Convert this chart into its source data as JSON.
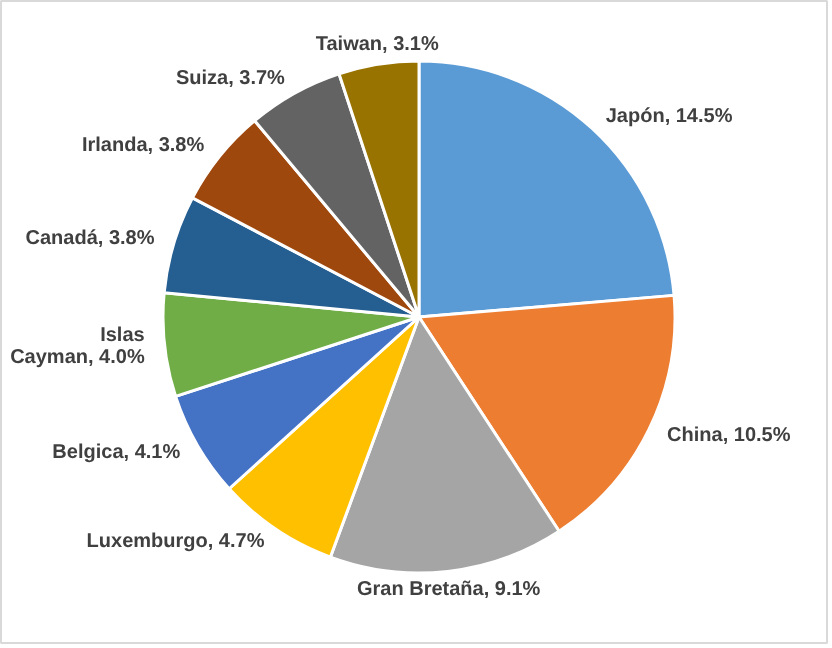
{
  "chart_data": {
    "type": "pie",
    "categories": [
      "Japón",
      "China",
      "Gran Bretaña",
      "Luxemburgo",
      "Belgica",
      "Islas Cayman",
      "Canadá",
      "Irlanda",
      "Suiza",
      "Taiwan"
    ],
    "values": [
      14.5,
      10.5,
      9.1,
      4.7,
      4.1,
      4.0,
      3.8,
      3.8,
      3.7,
      3.1
    ],
    "value_labels": [
      "14.5%",
      "10.5%",
      "9.1%",
      "4.7%",
      "4.1%",
      "4.0%",
      "3.8%",
      "3.8%",
      "3.7%",
      "3.1%"
    ],
    "colors": [
      "#5b9bd5",
      "#ed7d31",
      "#a5a5a5",
      "#ffc000",
      "#4472c4",
      "#70ad47",
      "#255e91",
      "#9e480e",
      "#636363",
      "#997300"
    ]
  }
}
